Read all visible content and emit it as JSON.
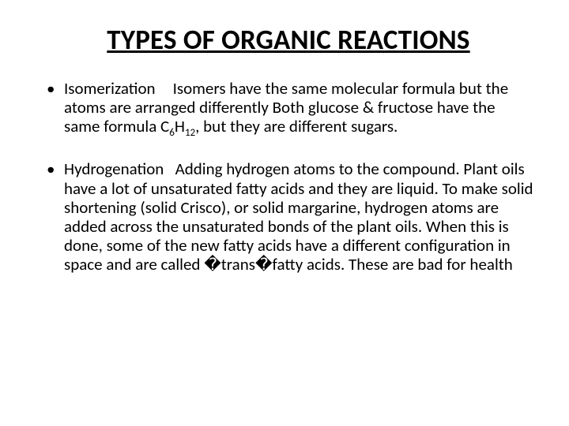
{
  "title": "TYPES OF ORGANIC REACTIONS",
  "bullets": [
    {
      "term": "Isomerization",
      "body_pre": "Isomers have the same molecular formula but the atoms are arranged differently Both glucose & fructose have the same formula C",
      "sub1": "6",
      "mid": "H",
      "sub2": "12",
      "body_post": ", but they are different  sugars."
    },
    {
      "term": "Hydrogenation",
      "body_pre": "Adding hydrogen atoms to the compound. Plant oils have a lot of unsaturated fatty acids and they are liquid.  To make solid shortening  (solid Crisco), or solid margarine, hydrogen atoms are added across the unsaturated bonds of the plant  oils.  When this is done, some of the new fatty acids have a different configuration in space and are called ",
      "glyph1": "�",
      "trans": "trans",
      "glyph2": "�",
      "body_post": "fatty acids. These are bad for health"
    }
  ],
  "colors": {
    "bg": "#ffffff",
    "text": "#000000"
  },
  "fonts": {
    "title_size": 35,
    "body_size": 21
  }
}
